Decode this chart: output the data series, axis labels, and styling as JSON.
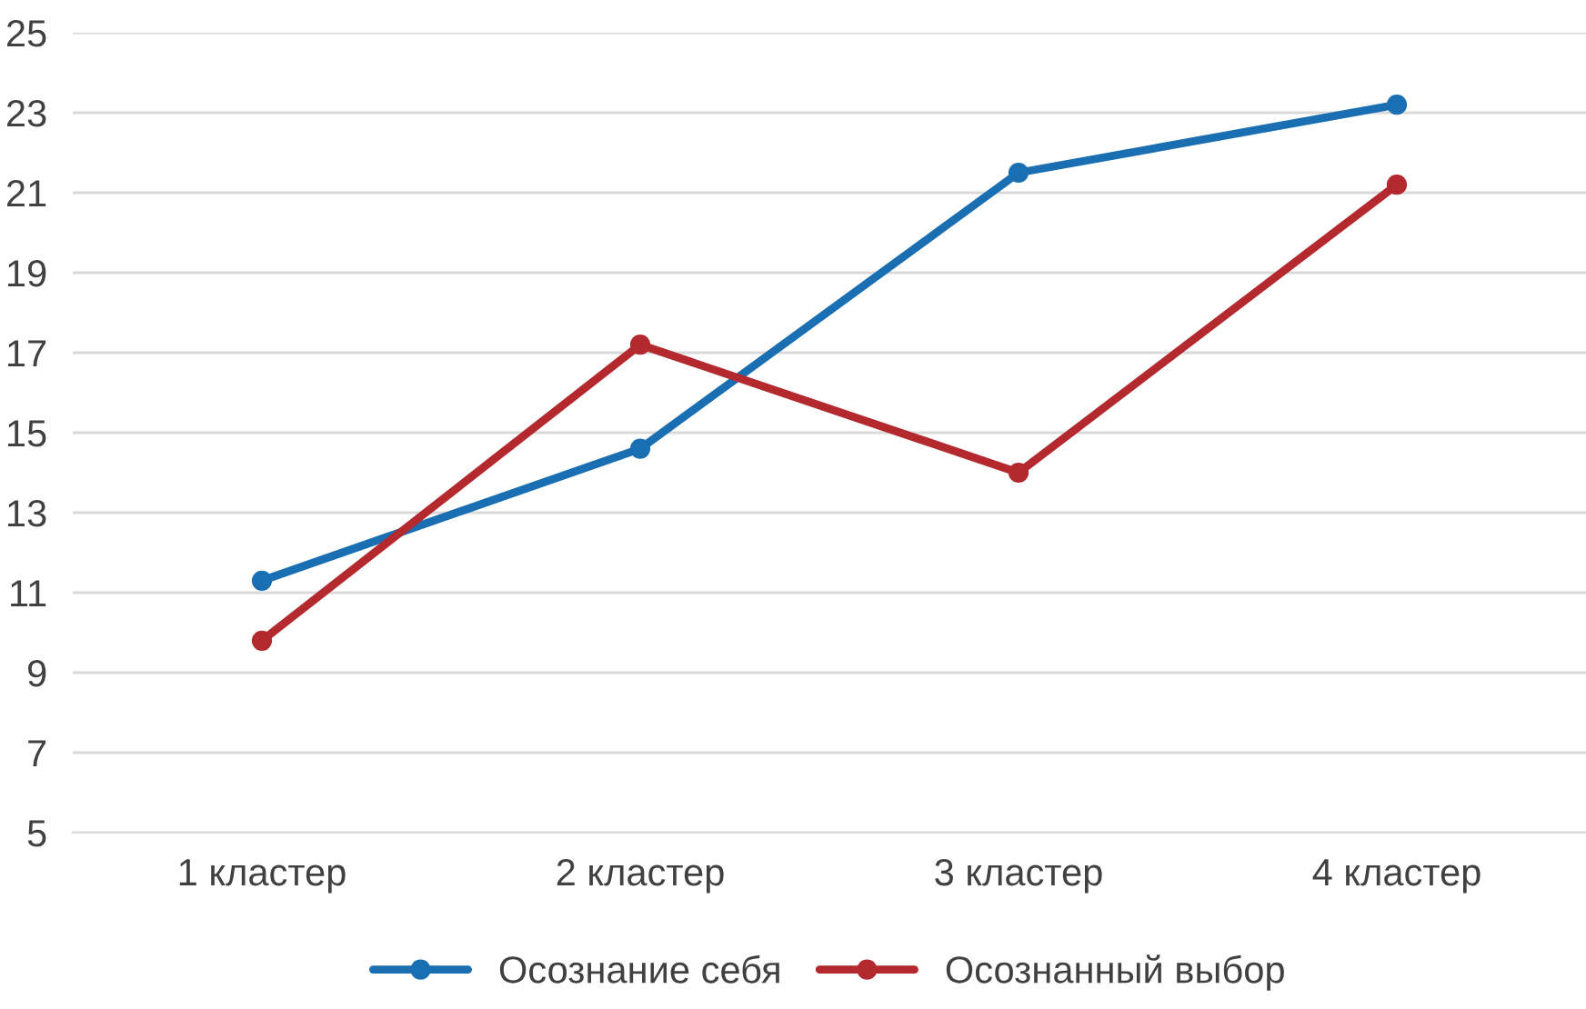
{
  "chart_data": {
    "type": "line",
    "categories": [
      "1 кластер",
      "2 кластер",
      "3 кластер",
      "4 кластер"
    ],
    "series": [
      {
        "name": "Осознание себя",
        "color": "#1a6fb3",
        "values": [
          11.3,
          14.6,
          21.5,
          23.2
        ]
      },
      {
        "name": "Осознанный выбор",
        "color": "#b3292e",
        "values": [
          9.8,
          17.2,
          14.0,
          21.2
        ]
      }
    ],
    "ylim": [
      5,
      25
    ],
    "yticks": [
      5,
      7,
      9,
      11,
      13,
      15,
      17,
      19,
      21,
      23,
      25
    ],
    "grid": "y",
    "legend": "bottom",
    "marker": "circle",
    "line_style": "solid"
  }
}
